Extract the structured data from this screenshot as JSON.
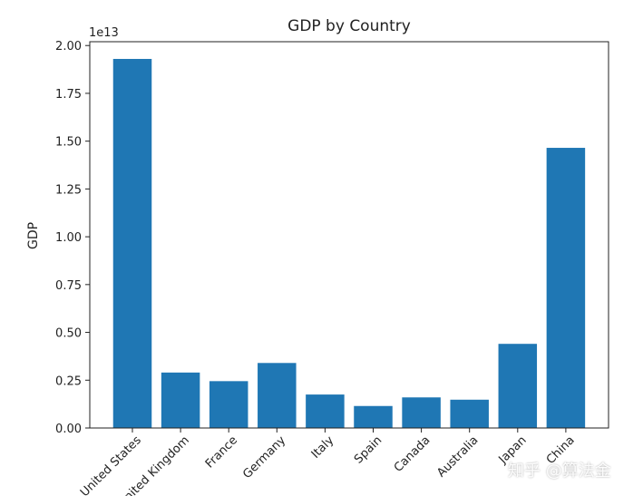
{
  "chart_data": {
    "type": "bar",
    "title": "GDP by Country",
    "xlabel": "",
    "ylabel": "GDP",
    "offset_text": "1e13",
    "categories": [
      "United States",
      "United Kingdom",
      "France",
      "Germany",
      "Italy",
      "Spain",
      "Canada",
      "Australia",
      "Japan",
      "China"
    ],
    "values": [
      1.93,
      0.29,
      0.245,
      0.34,
      0.175,
      0.115,
      0.16,
      0.148,
      0.44,
      1.465
    ],
    "value_scale": 10000000000000.0,
    "ylim": [
      0,
      2.02
    ],
    "yticks": [
      0.0,
      0.25,
      0.5,
      0.75,
      1.0,
      1.25,
      1.5,
      1.75,
      2.0
    ],
    "ytick_labels": [
      "0.00",
      "0.25",
      "0.50",
      "0.75",
      "1.00",
      "1.25",
      "1.50",
      "1.75",
      "2.00"
    ],
    "bar_color": "#1f77b4",
    "grid": false
  },
  "watermark": "知乎 @算法金"
}
